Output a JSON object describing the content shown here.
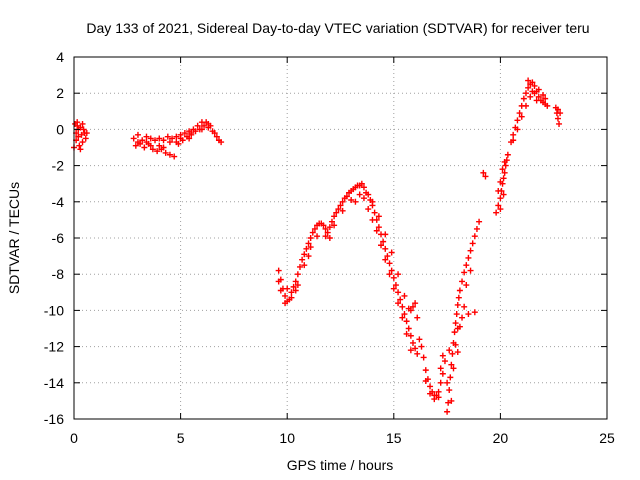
{
  "chart_data": {
    "type": "scatter",
    "title": "Day 133 of 2021, Sidereal Day-to-day VTEC variation (SDTVAR) for receiver teru",
    "xlabel": "GPS time / hours",
    "ylabel": "SDTVAR / TECUs",
    "xlim": [
      0,
      25
    ],
    "ylim": [
      -16,
      4
    ],
    "xticks": [
      0,
      5,
      10,
      15,
      20,
      25
    ],
    "yticks": [
      -16,
      -14,
      -12,
      -10,
      -8,
      -6,
      -4,
      -2,
      0,
      2,
      4
    ],
    "grid": true,
    "marker": "plus",
    "color": "#ff0000",
    "series": [
      {
        "points": [
          [
            0.0,
            -1.0
          ],
          [
            0.05,
            0.3
          ],
          [
            0.1,
            -0.6
          ],
          [
            0.15,
            0.2
          ],
          [
            0.2,
            -0.4
          ],
          [
            0.25,
            -0.9
          ],
          [
            0.3,
            0.1
          ],
          [
            0.35,
            -0.3
          ],
          [
            0.4,
            -0.7
          ],
          [
            0.45,
            0.0
          ],
          [
            0.5,
            -0.2
          ],
          [
            0.55,
            -0.5
          ],
          [
            0.15,
            0.4
          ],
          [
            0.3,
            -1.1
          ],
          [
            0.4,
            0.3
          ],
          [
            0.6,
            -0.2
          ],
          [
            0.1,
            -0.2
          ],
          [
            0.2,
            0.0
          ],
          [
            2.8,
            -0.5
          ],
          [
            2.9,
            -0.9
          ],
          [
            3.0,
            -0.3
          ],
          [
            3.1,
            -0.8
          ],
          [
            3.2,
            -0.6
          ],
          [
            3.3,
            -1.0
          ],
          [
            3.4,
            -0.4
          ],
          [
            3.5,
            -0.8
          ],
          [
            3.6,
            -0.5
          ],
          [
            3.7,
            -1.1
          ],
          [
            3.8,
            -0.6
          ],
          [
            3.9,
            -1.2
          ],
          [
            4.0,
            -0.5
          ],
          [
            4.1,
            -1.1
          ],
          [
            4.2,
            -0.6
          ],
          [
            4.3,
            -1.3
          ],
          [
            4.4,
            -0.4
          ],
          [
            4.5,
            -1.4
          ],
          [
            4.6,
            -0.5
          ],
          [
            4.7,
            -1.5
          ],
          [
            4.8,
            -0.4
          ],
          [
            4.9,
            -0.8
          ],
          [
            5.0,
            -0.3
          ],
          [
            5.1,
            -0.6
          ],
          [
            5.2,
            -0.2
          ],
          [
            5.3,
            -0.4
          ],
          [
            5.4,
            -0.1
          ],
          [
            5.5,
            -0.3
          ],
          [
            5.6,
            0.0
          ],
          [
            5.7,
            -0.1
          ],
          [
            5.8,
            0.2
          ],
          [
            5.9,
            0.0
          ],
          [
            6.0,
            0.4
          ],
          [
            6.1,
            0.2
          ],
          [
            6.2,
            0.4
          ],
          [
            6.3,
            0.1
          ],
          [
            6.4,
            0.2
          ],
          [
            6.5,
            -0.1
          ],
          [
            6.6,
            -0.2
          ],
          [
            6.7,
            -0.4
          ],
          [
            6.8,
            -0.6
          ],
          [
            6.9,
            -0.7
          ],
          [
            3.0,
            -0.7
          ],
          [
            3.6,
            -0.9
          ],
          [
            4.2,
            -1.0
          ],
          [
            4.8,
            -0.7
          ],
          [
            5.4,
            -0.5
          ],
          [
            6.0,
            0.0
          ],
          [
            4.0,
            -0.9
          ],
          [
            4.5,
            -0.7
          ],
          [
            5.0,
            -0.5
          ],
          [
            5.5,
            -0.2
          ],
          [
            6.3,
            0.3
          ],
          [
            3.4,
            -0.7
          ],
          [
            9.6,
            -7.8
          ],
          [
            9.7,
            -8.3
          ],
          [
            9.8,
            -8.8
          ],
          [
            9.9,
            -9.2
          ],
          [
            10.0,
            -9.5
          ],
          [
            10.1,
            -9.4
          ],
          [
            10.2,
            -9.0
          ],
          [
            10.3,
            -8.7
          ],
          [
            10.4,
            -8.4
          ],
          [
            10.5,
            -8.0
          ],
          [
            10.6,
            -7.6
          ],
          [
            10.7,
            -7.2
          ],
          [
            10.8,
            -6.9
          ],
          [
            10.9,
            -6.6
          ],
          [
            11.0,
            -6.3
          ],
          [
            11.1,
            -6.0
          ],
          [
            11.2,
            -5.7
          ],
          [
            11.3,
            -5.5
          ],
          [
            11.4,
            -5.3
          ],
          [
            11.5,
            -5.2
          ],
          [
            11.6,
            -5.2
          ],
          [
            11.7,
            -5.3
          ],
          [
            11.8,
            -5.5
          ],
          [
            11.9,
            -5.7
          ],
          [
            12.0,
            -5.4
          ],
          [
            12.1,
            -5.1
          ],
          [
            12.2,
            -4.8
          ],
          [
            12.3,
            -4.6
          ],
          [
            12.4,
            -4.4
          ],
          [
            12.5,
            -4.2
          ],
          [
            12.6,
            -4.0
          ],
          [
            12.7,
            -3.8
          ],
          [
            12.8,
            -3.7
          ],
          [
            12.9,
            -3.5
          ],
          [
            13.0,
            -3.4
          ],
          [
            13.1,
            -3.3
          ],
          [
            13.2,
            -3.2
          ],
          [
            13.3,
            -3.1
          ],
          [
            13.4,
            -3.1
          ],
          [
            13.5,
            -3.0
          ],
          [
            13.6,
            -3.2
          ],
          [
            13.7,
            -3.5
          ],
          [
            9.7,
            -8.9
          ],
          [
            9.9,
            -9.6
          ],
          [
            10.2,
            -9.3
          ],
          [
            10.5,
            -8.6
          ],
          [
            10.8,
            -7.5
          ],
          [
            11.1,
            -6.5
          ],
          [
            11.4,
            -5.9
          ],
          [
            11.8,
            -5.9
          ],
          [
            12.2,
            -5.3
          ],
          [
            12.6,
            -4.5
          ],
          [
            13.0,
            -3.9
          ],
          [
            13.4,
            -3.6
          ],
          [
            9.6,
            -8.4
          ],
          [
            10.0,
            -8.8
          ],
          [
            10.4,
            -8.9
          ],
          [
            11.0,
            -7.0
          ],
          [
            12.0,
            -6.0
          ],
          [
            13.2,
            -4.0
          ],
          [
            13.8,
            -3.6
          ],
          [
            13.9,
            -3.9
          ],
          [
            14.0,
            -4.2
          ],
          [
            14.1,
            -4.6
          ],
          [
            14.2,
            -5.0
          ],
          [
            14.3,
            -5.4
          ],
          [
            14.4,
            -5.8
          ],
          [
            14.5,
            -6.2
          ],
          [
            14.6,
            -6.6
          ],
          [
            14.7,
            -7.0
          ],
          [
            14.8,
            -7.4
          ],
          [
            14.9,
            -7.8
          ],
          [
            15.0,
            -8.2
          ],
          [
            15.1,
            -8.6
          ],
          [
            15.2,
            -9.0
          ],
          [
            15.3,
            -9.4
          ],
          [
            15.4,
            -9.8
          ],
          [
            15.5,
            -10.2
          ],
          [
            15.6,
            -10.6
          ],
          [
            15.7,
            -11.0
          ],
          [
            15.8,
            -11.4
          ],
          [
            15.9,
            -11.8
          ],
          [
            16.0,
            -12.1
          ],
          [
            16.1,
            -12.4
          ],
          [
            13.6,
            -3.8
          ],
          [
            13.8,
            -4.4
          ],
          [
            14.0,
            -5.0
          ],
          [
            14.2,
            -5.6
          ],
          [
            14.4,
            -6.4
          ],
          [
            14.6,
            -7.2
          ],
          [
            14.8,
            -8.0
          ],
          [
            15.0,
            -8.8
          ],
          [
            15.2,
            -9.6
          ],
          [
            15.4,
            -10.4
          ],
          [
            15.6,
            -11.3
          ],
          [
            15.8,
            -12.2
          ],
          [
            14.0,
            -4.0
          ],
          [
            14.3,
            -4.8
          ],
          [
            14.6,
            -5.8
          ],
          [
            14.9,
            -6.8
          ],
          [
            15.2,
            -8.0
          ],
          [
            15.5,
            -9.2
          ],
          [
            15.8,
            -10.0
          ],
          [
            16.1,
            -10.4
          ],
          [
            16.0,
            -9.6
          ],
          [
            15.9,
            -9.8
          ],
          [
            15.7,
            -9.9
          ],
          [
            16.2,
            -11.6
          ],
          [
            16.3,
            -12.0
          ],
          [
            16.4,
            -12.6
          ],
          [
            16.5,
            -13.3
          ],
          [
            16.6,
            -13.8
          ],
          [
            16.7,
            -14.2
          ],
          [
            16.8,
            -14.5
          ],
          [
            16.9,
            -14.7
          ],
          [
            17.0,
            -14.7
          ],
          [
            17.1,
            -14.5
          ],
          [
            17.2,
            -14.0
          ],
          [
            17.3,
            -13.5
          ],
          [
            17.4,
            -12.8
          ],
          [
            16.5,
            -13.9
          ],
          [
            16.7,
            -14.6
          ],
          [
            16.9,
            -14.9
          ],
          [
            17.1,
            -14.8
          ],
          [
            17.2,
            -13.2
          ],
          [
            17.3,
            -12.5
          ],
          [
            17.5,
            -15.6
          ],
          [
            17.55,
            -15.1
          ],
          [
            17.6,
            -14.4
          ],
          [
            17.65,
            -13.7
          ],
          [
            17.7,
            -13.0
          ],
          [
            17.75,
            -12.4
          ],
          [
            17.8,
            -11.8
          ],
          [
            17.85,
            -11.2
          ],
          [
            17.9,
            -10.7
          ],
          [
            17.95,
            -10.2
          ],
          [
            18.0,
            -9.7
          ],
          [
            18.05,
            -9.3
          ],
          [
            18.1,
            -8.9
          ],
          [
            18.2,
            -8.4
          ],
          [
            18.3,
            -7.9
          ],
          [
            18.4,
            -7.5
          ],
          [
            18.5,
            -7.1
          ],
          [
            18.6,
            -6.7
          ],
          [
            18.7,
            -6.3
          ],
          [
            18.8,
            -5.9
          ],
          [
            18.9,
            -5.5
          ],
          [
            19.0,
            -5.1
          ],
          [
            18.0,
            -11.0
          ],
          [
            18.2,
            -10.4
          ],
          [
            18.5,
            -10.2
          ],
          [
            18.8,
            -10.1
          ],
          [
            17.6,
            -12.2
          ],
          [
            17.9,
            -11.9
          ],
          [
            18.1,
            -10.9
          ],
          [
            18.3,
            -9.8
          ],
          [
            17.8,
            -13.2
          ],
          [
            18.0,
            -12.3
          ],
          [
            17.5,
            -14.0
          ],
          [
            17.7,
            -15.0
          ],
          [
            18.4,
            -8.6
          ],
          [
            18.6,
            -7.8
          ],
          [
            19.2,
            -2.4
          ],
          [
            19.3,
            -2.6
          ],
          [
            19.8,
            -4.6
          ],
          [
            19.9,
            -4.2
          ],
          [
            20.0,
            -3.8
          ],
          [
            20.05,
            -3.4
          ],
          [
            20.1,
            -3.0
          ],
          [
            20.15,
            -2.7
          ],
          [
            20.2,
            -2.4
          ],
          [
            20.25,
            -2.0
          ],
          [
            20.3,
            -1.7
          ],
          [
            20.35,
            -1.4
          ],
          [
            19.9,
            -3.4
          ],
          [
            20.0,
            -2.9
          ],
          [
            20.1,
            -2.2
          ],
          [
            20.2,
            -1.8
          ],
          [
            20.0,
            -4.4
          ],
          [
            20.15,
            -3.6
          ],
          [
            20.5,
            -0.7
          ],
          [
            20.6,
            -0.3
          ],
          [
            20.7,
            0.1
          ],
          [
            20.8,
            0.5
          ],
          [
            20.9,
            0.9
          ],
          [
            21.0,
            1.3
          ],
          [
            21.1,
            1.7
          ],
          [
            21.2,
            2.0
          ],
          [
            21.3,
            2.3
          ],
          [
            21.4,
            2.5
          ],
          [
            21.5,
            2.6
          ],
          [
            21.6,
            2.4
          ],
          [
            21.7,
            2.1
          ],
          [
            21.8,
            1.8
          ],
          [
            21.9,
            1.6
          ],
          [
            22.0,
            1.5
          ],
          [
            22.1,
            1.4
          ],
          [
            22.2,
            1.3
          ],
          [
            20.6,
            -0.6
          ],
          [
            20.8,
            0.0
          ],
          [
            21.0,
            0.7
          ],
          [
            21.2,
            1.3
          ],
          [
            21.4,
            1.8
          ],
          [
            21.6,
            2.0
          ],
          [
            21.8,
            2.2
          ],
          [
            22.0,
            1.9
          ],
          [
            21.3,
            2.7
          ],
          [
            21.5,
            2.1
          ],
          [
            21.7,
            1.6
          ],
          [
            22.1,
            1.7
          ],
          [
            22.6,
            1.2
          ],
          [
            22.65,
            0.9
          ],
          [
            22.7,
            0.6
          ],
          [
            22.75,
            0.3
          ],
          [
            22.8,
            0.9
          ],
          [
            22.7,
            1.1
          ]
        ]
      }
    ]
  }
}
